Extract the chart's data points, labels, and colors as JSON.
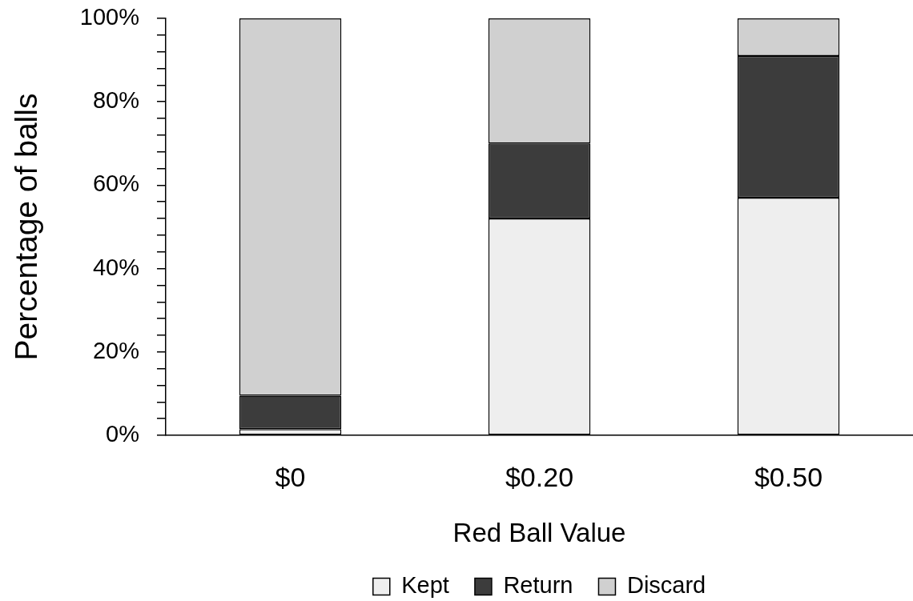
{
  "chart_data": {
    "type": "bar",
    "stacked": true,
    "categories": [
      "$0",
      "$0.20",
      "$0.50"
    ],
    "series": [
      {
        "name": "Kept",
        "color": "#eeeeee",
        "values": [
          1.5,
          52,
          57
        ]
      },
      {
        "name": "Return",
        "color": "#3c3c3c",
        "values": [
          8,
          18,
          34
        ]
      },
      {
        "name": "Discard",
        "color": "#d0d0d0",
        "values": [
          90.5,
          30,
          9
        ]
      }
    ],
    "xlabel": "Red Ball Value",
    "ylabel": "Percentage of balls",
    "ylim": [
      0,
      100
    ],
    "yticks": [
      {
        "value": 0,
        "label": "0%"
      },
      {
        "value": 4,
        "label": null
      },
      {
        "value": 8,
        "label": null
      },
      {
        "value": 12,
        "label": null
      },
      {
        "value": 16,
        "label": null
      },
      {
        "value": 20,
        "label": "20%"
      },
      {
        "value": 24,
        "label": null
      },
      {
        "value": 28,
        "label": null
      },
      {
        "value": 32,
        "label": null
      },
      {
        "value": 36,
        "label": null
      },
      {
        "value": 40,
        "label": "40%"
      },
      {
        "value": 44,
        "label": null
      },
      {
        "value": 48,
        "label": null
      },
      {
        "value": 52,
        "label": null
      },
      {
        "value": 56,
        "label": null
      },
      {
        "value": 60,
        "label": "60%"
      },
      {
        "value": 64,
        "label": null
      },
      {
        "value": 68,
        "label": null
      },
      {
        "value": 72,
        "label": null
      },
      {
        "value": 76,
        "label": null
      },
      {
        "value": 80,
        "label": "80%"
      },
      {
        "value": 84,
        "label": null
      },
      {
        "value": 88,
        "label": null
      },
      {
        "value": 92,
        "label": null
      },
      {
        "value": 96,
        "label": null
      },
      {
        "value": 100,
        "label": "100%"
      }
    ],
    "legend": "bottom"
  }
}
